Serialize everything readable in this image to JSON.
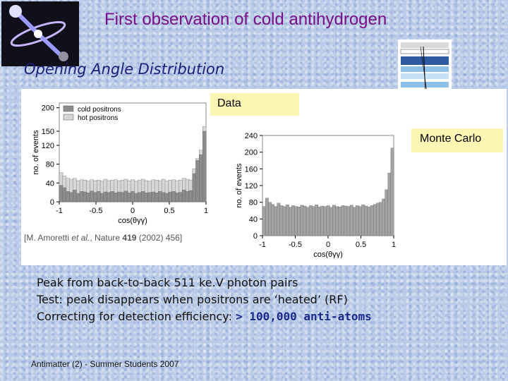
{
  "slide": {
    "title": "First observation of cold antihydrogen",
    "subtitle": "Opening Angle Distribution",
    "data_label": "Data",
    "mc_label": "Monte Carlo",
    "citation": {
      "prefix": "[M. Amoretti ",
      "etal": "et al.",
      "suffix": ", Nature ",
      "volume": "419",
      "tail": " (2002) 456]"
    },
    "bullets": [
      "Peak from back-to-back 511 ke.V photon pairs",
      "Test: peak disappears when positrons are ‘heated’ (RF)",
      "Correcting for detection efficiency: "
    ],
    "highlight": "> 100,000 anti-atoms",
    "footer": "Antimatter (2) - Summer Students 2007"
  },
  "colors": {
    "title": "#7a0f86",
    "subtitle": "#1e1e78",
    "label_bg": "#fcf6b4",
    "hot_fill": "#d6d6d6",
    "cold_fill": "#8c8c8c",
    "mc_fill": "#a3a3a3"
  },
  "chart_data": [
    {
      "type": "bar",
      "title": "",
      "xlabel": "cos(θγγ)",
      "ylabel": "no. of events",
      "xlim": [
        -1,
        1
      ],
      "ylim": [
        0,
        210
      ],
      "xticks": [
        "-1",
        "-0.5",
        "0",
        "0.5",
        "1"
      ],
      "yticks": [
        "0",
        "40",
        "80",
        "120",
        "150",
        "200"
      ],
      "legend": [
        "cold positrons",
        "hot positrons"
      ],
      "legend_position": "top-left",
      "series": [
        {
          "name": "hot positrons",
          "values": [
            62,
            55,
            50,
            48,
            50,
            45,
            47,
            46,
            44,
            47,
            45,
            46,
            44,
            48,
            45,
            46,
            47,
            45,
            46,
            48,
            45,
            47,
            44,
            46,
            48,
            45,
            44,
            47,
            46,
            45,
            48,
            44,
            46,
            47,
            45,
            46,
            50,
            48,
            46,
            70,
            92,
            110,
            160
          ]
        },
        {
          "name": "cold positrons",
          "values": [
            35,
            30,
            22,
            20,
            25,
            18,
            22,
            21,
            19,
            23,
            20,
            22,
            18,
            21,
            20,
            22,
            19,
            21,
            20,
            23,
            19,
            22,
            18,
            20,
            22,
            19,
            20,
            21,
            19,
            22,
            20,
            18,
            21,
            22,
            19,
            20,
            25,
            22,
            24,
            60,
            88,
            100,
            150
          ]
        }
      ]
    },
    {
      "type": "bar",
      "title": "",
      "xlabel": "cos(θγγ)",
      "ylabel": "no. of events",
      "xlim": [
        -1,
        1
      ],
      "ylim": [
        0,
        240
      ],
      "xticks": [
        "-1",
        "-0.5",
        "0",
        "0.5",
        "1"
      ],
      "yticks": [
        "0",
        "40",
        "80",
        "120",
        "160",
        "200",
        "240"
      ],
      "series": [
        {
          "name": "",
          "values": [
            70,
            90,
            80,
            75,
            70,
            78,
            72,
            70,
            74,
            68,
            72,
            70,
            69,
            73,
            71,
            68,
            72,
            70,
            74,
            69,
            71,
            70,
            72,
            68,
            73,
            70,
            69,
            72,
            71,
            70,
            73,
            68,
            72,
            70,
            74,
            71,
            69,
            72,
            75,
            78,
            80,
            88,
            110,
            150,
            210
          ]
        }
      ]
    }
  ]
}
